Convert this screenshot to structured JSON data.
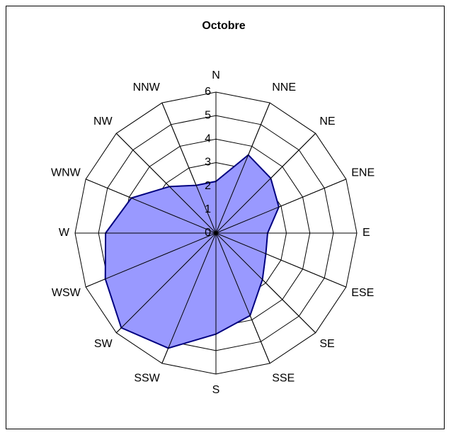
{
  "chart_data": {
    "type": "radar",
    "title": "Octobre",
    "categories": [
      "N",
      "NNE",
      "NE",
      "ENE",
      "E",
      "ESE",
      "SE",
      "SSE",
      "S",
      "SSW",
      "SW",
      "WSW",
      "W",
      "WNW",
      "NW",
      "NNW"
    ],
    "series": [
      {
        "name": null,
        "color": "#9999ff",
        "values": [
          2.2,
          3.6,
          3.3,
          2.9,
          2.2,
          2.3,
          2.8,
          3.8,
          4.3,
          5.3,
          5.7,
          5.1,
          4.7,
          3.9,
          2.8,
          2.2
        ]
      }
    ],
    "ylim": [
      0,
      6
    ],
    "yticks": [
      0,
      1,
      2,
      3,
      4,
      5,
      6
    ],
    "grid": true
  }
}
